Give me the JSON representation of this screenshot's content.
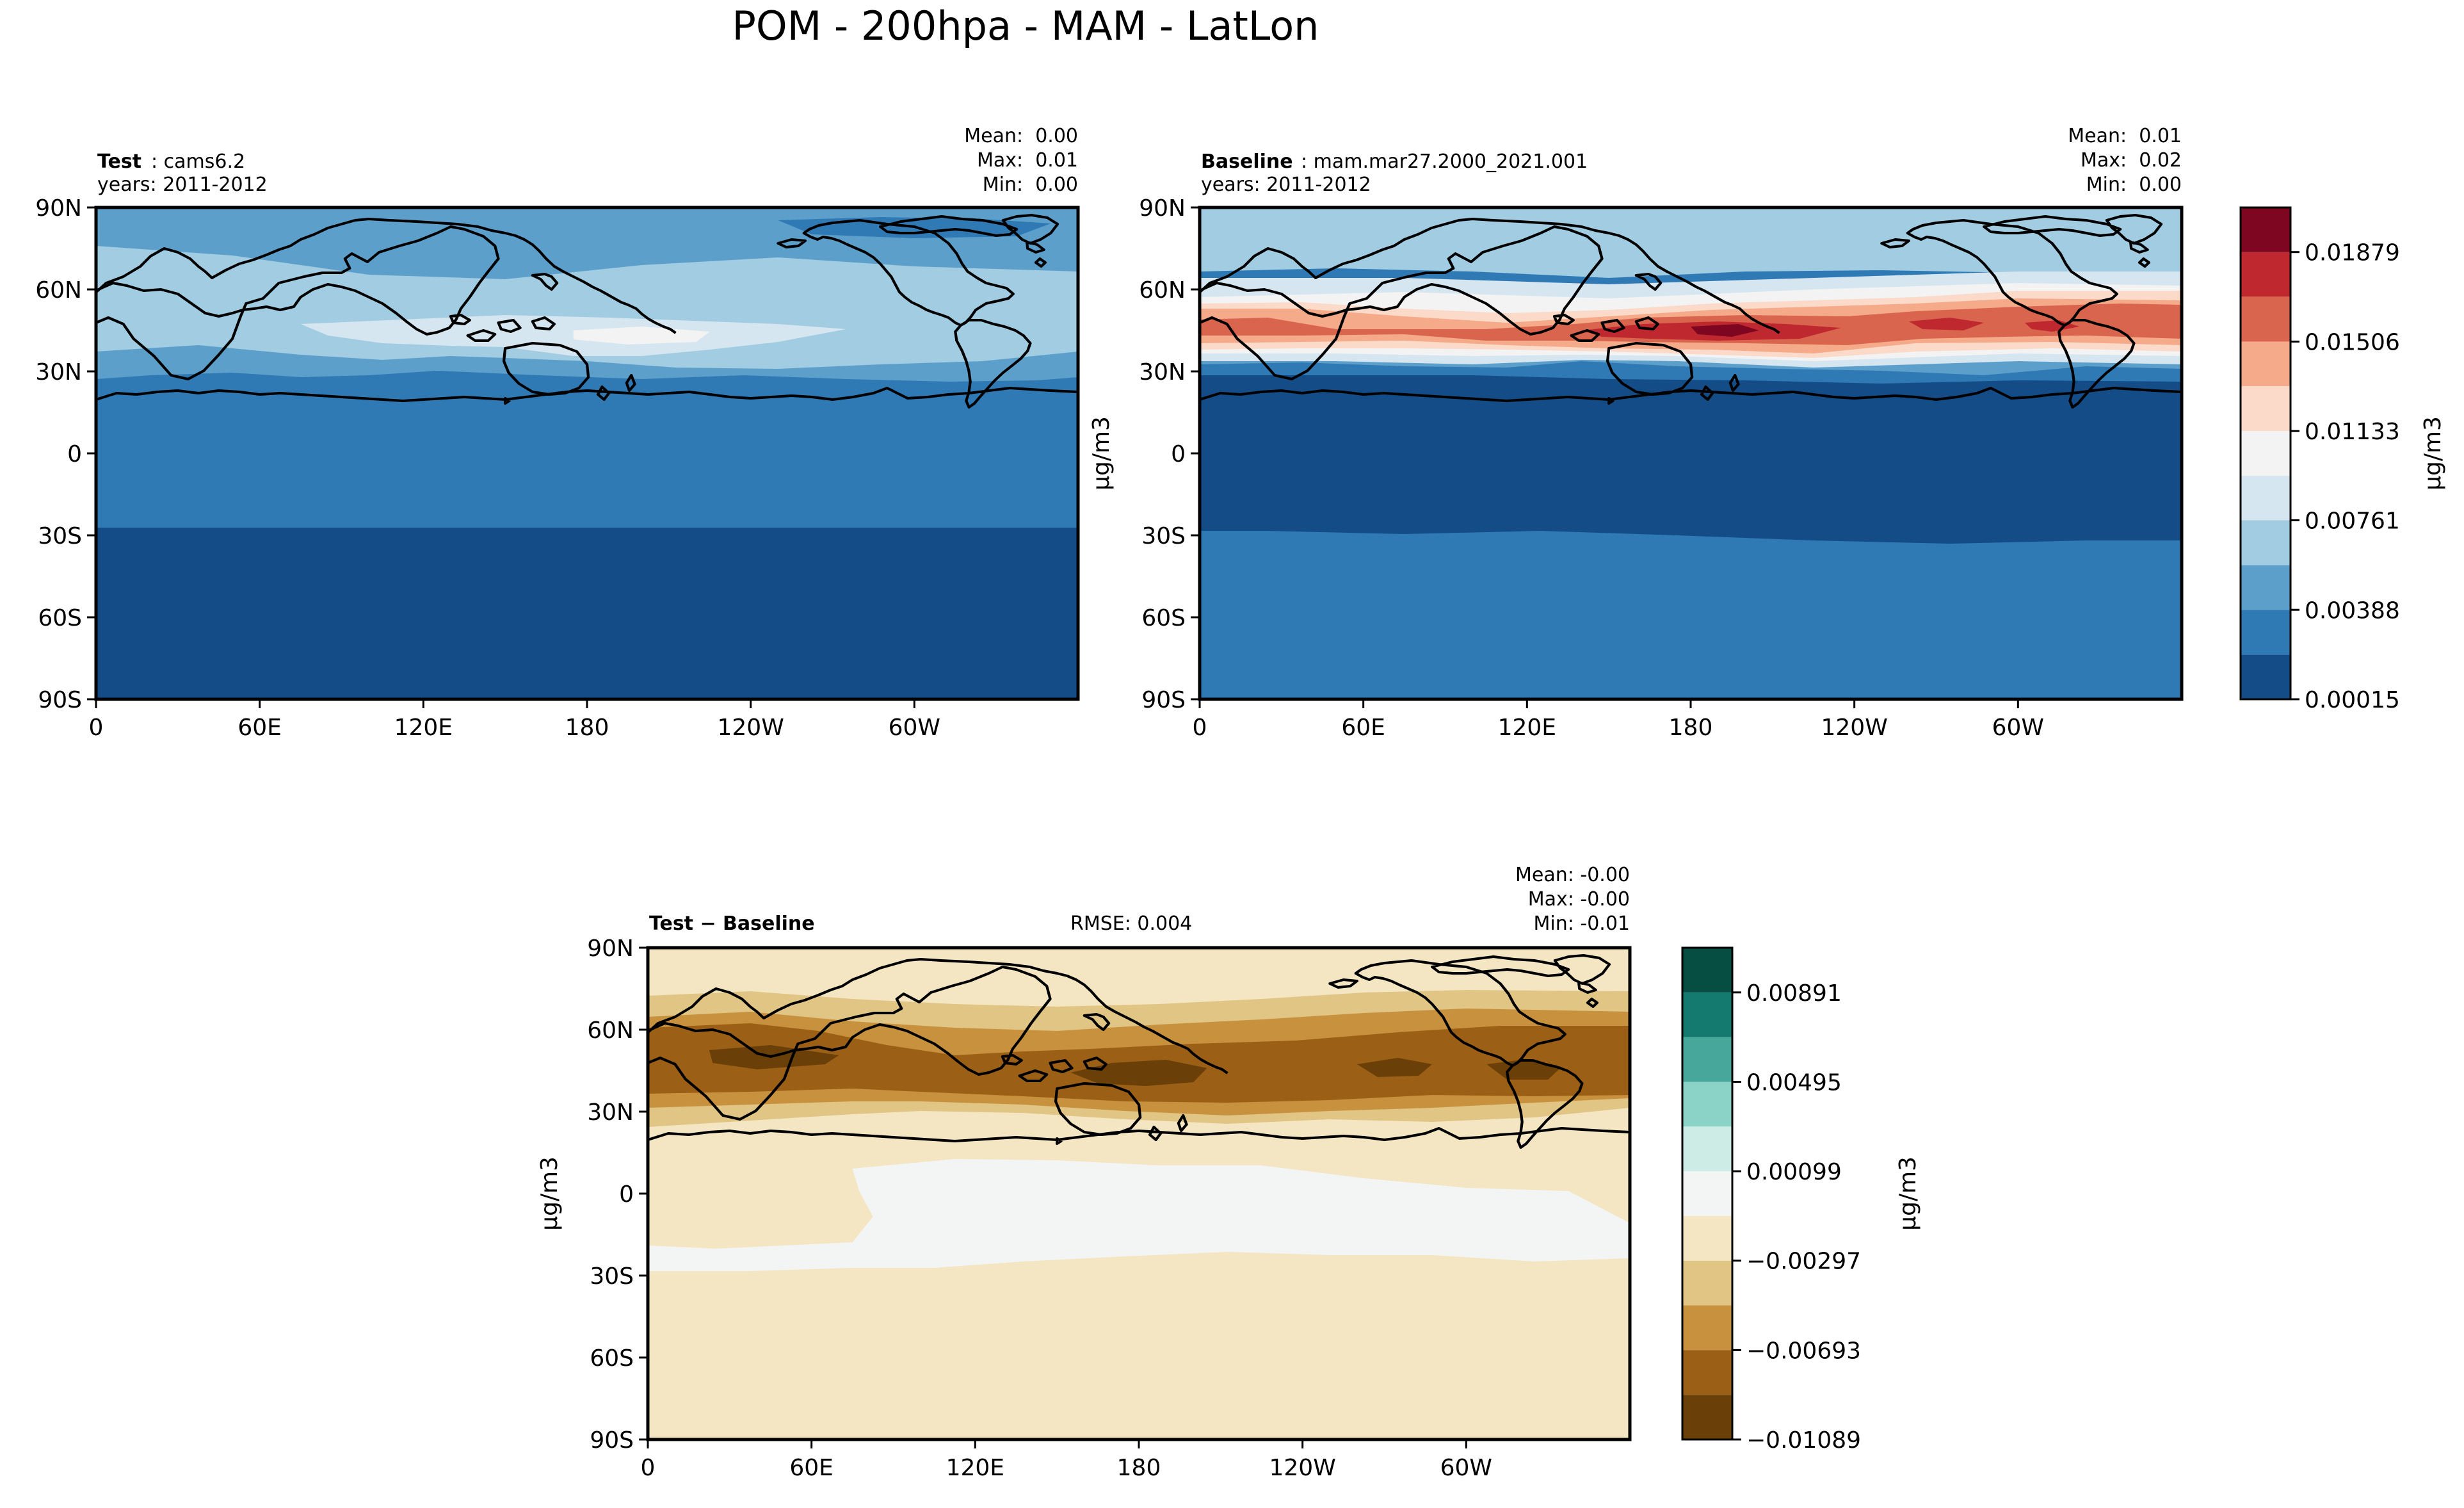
{
  "figure_title": "POM - 200hpa - MAM - LatLon",
  "chart_data": [
    {
      "type": "heatmap",
      "panel": "test",
      "label_bold": "Test",
      "label_rest": ": cams6.2",
      "years": "years: 2011-2012",
      "stats": [
        "Mean:  0.00",
        "Max:  0.01",
        "Min:  0.00"
      ],
      "ylabel": "",
      "xlim": [
        0,
        360
      ],
      "ylim": [
        -90,
        90
      ],
      "xticks": [
        "0",
        "60E",
        "120E",
        "180",
        "120W",
        "60W"
      ],
      "yticks": [
        "90N",
        "60N",
        "30N",
        "0",
        "30S",
        "60S",
        "90S"
      ],
      "colorscale": "RdBu_r",
      "field": "POM concentration at 200 hPa, MAM mean; maximum (~0.008-0.01) in the 30N-45N band over the N. Pacific near 180; minimum over the tropics and southern hemisphere"
    },
    {
      "type": "heatmap",
      "panel": "baseline",
      "label_bold": "Baseline",
      "label_rest": ": mam.mar27.2000_2021.001",
      "years": "years: 2011-2012",
      "stats": [
        "Mean:  0.01",
        "Max:  0.02",
        "Min:  0.00"
      ],
      "ylabel": "μg/m3",
      "xlim": [
        0,
        360
      ],
      "ylim": [
        -90,
        90
      ],
      "xticks": [
        "0",
        "60E",
        "120E",
        "180",
        "120W",
        "60W"
      ],
      "yticks": [
        "90N",
        "60N",
        "30N",
        "0",
        "30S",
        "60S",
        "90S"
      ],
      "colorbar": {
        "label": "μg/m3",
        "levels": [
          0.00015,
          0.00201,
          0.00388,
          0.00574,
          0.00761,
          0.00947,
          0.01133,
          0.0132,
          0.01506,
          0.01693,
          0.01879,
          0.02065
        ],
        "tick_labels": [
          "0.01879",
          "0.01506",
          "0.01133",
          "0.00761",
          "0.00388",
          "0.00015"
        ],
        "colors": [
          "#134c87",
          "#2f79b5",
          "#5d9fcb",
          "#a2cce2",
          "#d6e6f1",
          "#f3f3f3",
          "#fbdaca",
          "#f5aa89",
          "#d9654f",
          "#c0282f",
          "#7f0620"
        ]
      },
      "field": "Strong band 0.015-0.02 along 30N-45N from the Mediterranean to the N. Atlantic, peaking near 180 and 60W"
    },
    {
      "type": "heatmap",
      "panel": "difference",
      "label_bold": "Test − Baseline",
      "rmse": "RMSE: 0.004",
      "stats": [
        "Mean: -0.00",
        "Max: -0.00",
        "Min: -0.01"
      ],
      "ylabel": "μg/m3",
      "xlim": [
        0,
        360
      ],
      "ylim": [
        -90,
        90
      ],
      "xticks": [
        "0",
        "60E",
        "120E",
        "180",
        "120W",
        "60W"
      ],
      "yticks": [
        "90N",
        "60N",
        "30N",
        "0",
        "30S",
        "60S",
        "90S"
      ],
      "colorbar": {
        "label": "μg/m3",
        "levels": [
          -0.01089,
          -0.00891,
          -0.00693,
          -0.00495,
          -0.00297,
          -0.00099,
          0.00099,
          0.00297,
          0.00495,
          0.00693,
          0.00891,
          0.01089
        ],
        "tick_labels": [
          "0.00891",
          "0.00495",
          "0.00099",
          "−0.00297",
          "−0.00693",
          "−0.01089"
        ],
        "colors": [
          "#6a4008",
          "#9b5f16",
          "#c8913e",
          "#e0c584",
          "#f4e5c3",
          "#f3f4f4",
          "#cdece6",
          "#8ad3c6",
          "#47a79a",
          "#14796f",
          "#064d42"
        ]
      },
      "field": "Negative everywhere: strongest (-0.007 to -0.011) at 30N-50N, near zero over tropical/SH oceans"
    }
  ]
}
